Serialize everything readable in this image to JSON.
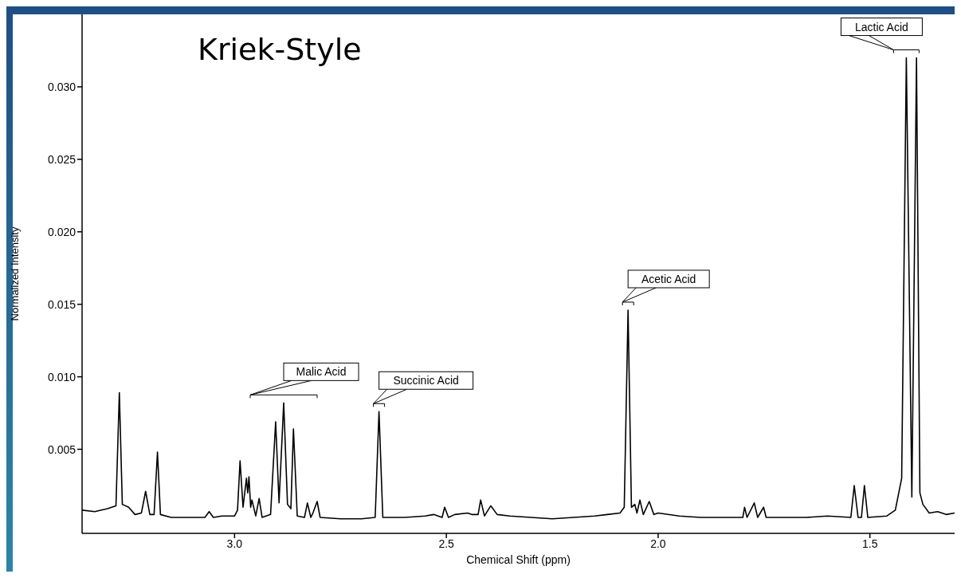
{
  "chart_data": {
    "type": "line",
    "title": "Kriek-Style",
    "xlabel": "Chemical Shift (ppm)",
    "ylabel": "Normalized Intensity",
    "xlim": [
      3.36,
      1.3
    ],
    "xticks": [
      {
        "value": 3,
        "label": "3.0"
      },
      2.5,
      {
        "value": 2,
        "label": "2.0"
      },
      1.5
    ],
    "ylim": [
      -0.0008,
      0.035
    ],
    "yticks": [
      0.005,
      {
        "value": 0.01,
        "label": "0.010"
      },
      0.015,
      {
        "value": 0.02,
        "label": "0.020"
      },
      0.025,
      {
        "value": 0.03,
        "label": "0.030"
      }
    ],
    "grid": false,
    "legend": false,
    "marker": "none",
    "line_style": "solid",
    "annotations": [
      {
        "text": "Malic Acid",
        "x": 2.884,
        "y": 0.0082
      },
      {
        "text": "Succinic Acid",
        "x": 2.659,
        "y": 0.0076
      },
      {
        "text": "Acetic Acid",
        "x": 2.071,
        "y": 0.0146
      },
      {
        "text": "Lactic Acid",
        "x": 1.414,
        "y": 0.032
      }
    ],
    "series": [
      {
        "color": "#000000",
        "x": [
          3.36,
          3.33,
          3.3,
          3.28,
          3.272,
          3.265,
          3.25,
          3.235,
          3.22,
          3.21,
          3.2,
          3.19,
          3.182,
          3.175,
          3.15,
          3.1,
          3.07,
          3.06,
          3.05,
          3.03,
          3.0,
          2.993,
          2.987,
          2.98,
          2.972,
          2.969,
          2.966,
          2.962,
          2.959,
          2.95,
          2.942,
          2.935,
          2.915,
          2.903,
          2.895,
          2.884,
          2.875,
          2.867,
          2.861,
          2.852,
          2.835,
          2.828,
          2.82,
          2.815,
          2.805,
          2.798,
          2.75,
          2.7,
          2.668,
          2.659,
          2.65,
          2.6,
          2.55,
          2.53,
          2.51,
          2.504,
          2.495,
          2.48,
          2.45,
          2.44,
          2.425,
          2.419,
          2.41,
          2.395,
          2.38,
          2.35,
          2.3,
          2.25,
          2.2,
          2.15,
          2.12,
          2.09,
          2.08,
          2.071,
          2.063,
          2.055,
          2.05,
          2.043,
          2.035,
          2.021,
          2.01,
          2.0,
          1.95,
          1.9,
          1.85,
          1.8,
          1.796,
          1.79,
          1.773,
          1.765,
          1.751,
          1.745,
          1.7,
          1.65,
          1.6,
          1.545,
          1.537,
          1.528,
          1.52,
          1.513,
          1.505,
          1.46,
          1.44,
          1.425,
          1.414,
          1.401,
          1.39,
          1.382,
          1.375,
          1.36,
          1.34,
          1.32,
          1.3
        ],
        "values": [
          0.0008,
          0.0007,
          0.0009,
          0.0011,
          0.0089,
          0.0012,
          0.001,
          0.0005,
          0.0006,
          0.0021,
          0.0005,
          0.0005,
          0.0048,
          0.0005,
          0.0003,
          0.0003,
          0.0003,
          0.0007,
          0.0003,
          0.0004,
          0.0004,
          0.0008,
          0.0042,
          0.001,
          0.003,
          0.002,
          0.0031,
          0.001,
          0.0015,
          0.0004,
          0.0016,
          0.0003,
          0.0005,
          0.0069,
          0.0013,
          0.0082,
          0.0012,
          0.0009,
          0.0064,
          0.0004,
          0.0003,
          0.0013,
          0.0003,
          0.0006,
          0.0014,
          0.0003,
          0.0002,
          0.0002,
          0.0003,
          0.0076,
          0.0003,
          0.0003,
          0.0004,
          0.0005,
          0.0003,
          0.001,
          0.0003,
          0.0005,
          0.0006,
          0.0005,
          0.0005,
          0.0015,
          0.0004,
          0.0011,
          0.0005,
          0.0004,
          0.0003,
          0.0002,
          0.0003,
          0.0004,
          0.0005,
          0.0006,
          0.001,
          0.0146,
          0.001,
          0.0012,
          0.0006,
          0.0015,
          0.0005,
          0.0014,
          0.0005,
          0.0006,
          0.0004,
          0.0003,
          0.0003,
          0.0003,
          0.001,
          0.0003,
          0.0013,
          0.0003,
          0.001,
          0.0003,
          0.0003,
          0.0003,
          0.0004,
          0.0003,
          0.0025,
          0.0003,
          0.0003,
          0.0025,
          0.0003,
          0.0004,
          0.0008,
          0.003,
          0.032,
          0.0017,
          0.032,
          0.002,
          0.0012,
          0.0006,
          0.0007,
          0.0005,
          0.0006
        ]
      }
    ]
  }
}
